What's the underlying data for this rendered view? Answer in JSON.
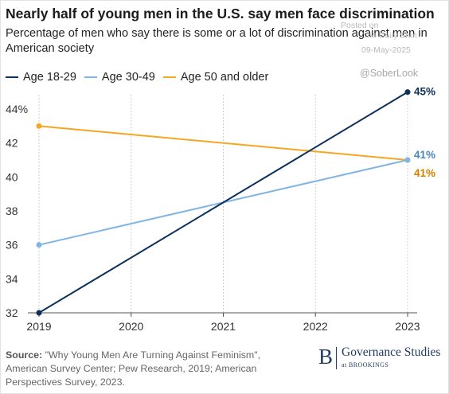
{
  "header": {
    "title": "Nearly half of young men in the U.S. say men face discrimination",
    "subtitle": "Percentage of men who say there is some or a lot of discrimination against men in American society"
  },
  "watermark": {
    "posted": "Posted on",
    "site": "The Daily Shot",
    "date": "09-May-2025",
    "handle": "@SoberLook"
  },
  "footer": {
    "source_label": "Source:",
    "source_text": " \"Why Young Men Are Turning Against Feminism\", American Survey Center; Pew Research, 2019; American Perspectives Survey, 2023.",
    "logo_letter": "B",
    "logo_name": "Governance Studies",
    "logo_sub": "at BROOKINGS"
  },
  "chart_data": {
    "type": "line",
    "x_ticks": [
      "2019",
      "2020",
      "2021",
      "2022",
      "2023"
    ],
    "y_ticks": [
      "32",
      "34",
      "36",
      "38",
      "40",
      "42",
      "44%"
    ],
    "xlim": [
      2019,
      2023
    ],
    "ylim": [
      32,
      44
    ],
    "grid": "vertical gridlines",
    "legend": "top-left",
    "series": [
      {
        "name": "Age 18-29",
        "color": "#0d2f5c",
        "x": [
          2019,
          2023
        ],
        "values": [
          32,
          45
        ],
        "end_label": "45%"
      },
      {
        "name": "Age 30-49",
        "color": "#82b5e3",
        "x": [
          2019,
          2023
        ],
        "values": [
          36,
          41
        ],
        "end_label": "41%"
      },
      {
        "name": "Age 50 and older",
        "color": "#f5a623",
        "x": [
          2019,
          2023
        ],
        "values": [
          43,
          41
        ],
        "end_label": "41%"
      }
    ],
    "end_label_colors": [
      "#0d2f5c",
      "#4a86bd",
      "#d28000"
    ]
  }
}
